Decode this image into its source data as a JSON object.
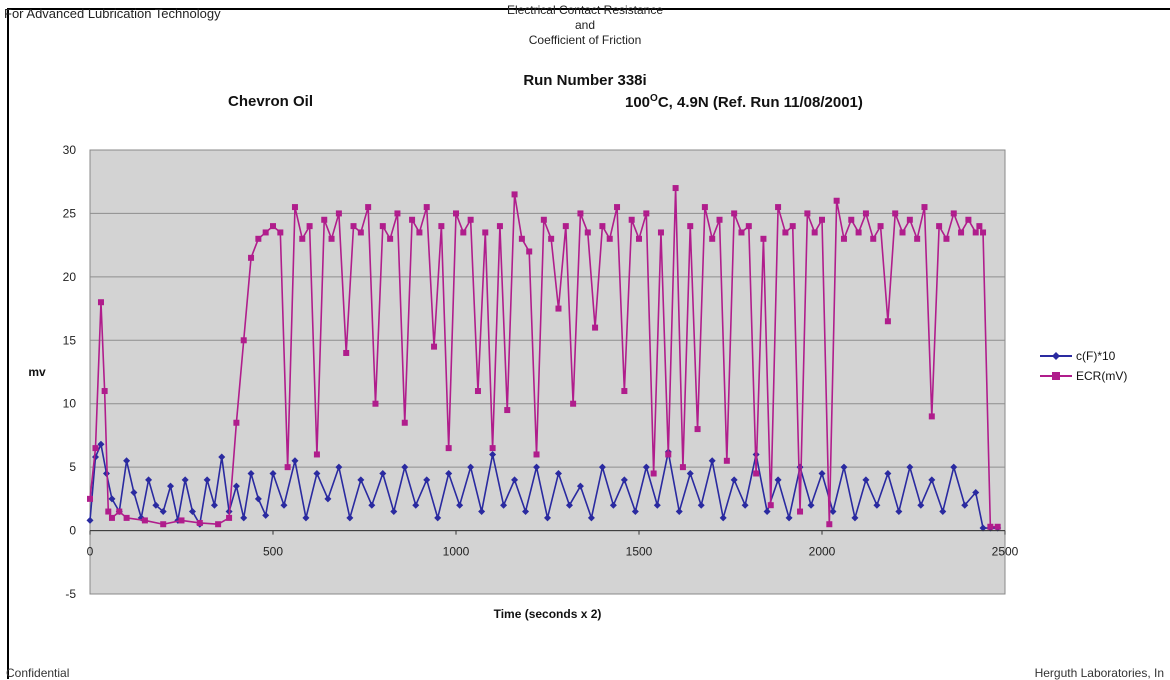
{
  "header": {
    "left_text": "For Advanced Lubrication Technology",
    "center_line1": "Electrical Contact Resistance",
    "center_line2": "and",
    "center_line3": "Coefficient of Friction"
  },
  "footer": {
    "left_text": "Confidential",
    "right_text": "Herguth Laboratories, In"
  },
  "chart_data": {
    "type": "line",
    "title": "Run Number 338i",
    "subtitle_left": "Chevron Oil",
    "subtitle_right_prefix": "100",
    "subtitle_right_degree": "O",
    "subtitle_right_suffix": "C, 4.9N (Ref. Run 11/08/2001)",
    "xlabel": "Time (seconds x 2)",
    "ylabel": "mv",
    "xlim": [
      0,
      2500
    ],
    "ylim": [
      -5,
      30
    ],
    "x_ticks": [
      "0",
      "500",
      "1000",
      "1500",
      "2000",
      "2500"
    ],
    "y_ticks": [
      "30",
      "25",
      "20",
      "15",
      "10",
      "5",
      "0",
      "-5"
    ],
    "grid": true,
    "plot_background": "#d3d3d3",
    "legend_position": "right",
    "series": [
      {
        "name": "c(F)*10",
        "color": "#2a2aa0",
        "marker": "diamond",
        "x": [
          0,
          15,
          30,
          45,
          60,
          80,
          100,
          120,
          140,
          160,
          180,
          200,
          220,
          240,
          260,
          280,
          300,
          320,
          340,
          360,
          380,
          400,
          420,
          440,
          460,
          480,
          500,
          530,
          560,
          590,
          620,
          650,
          680,
          710,
          740,
          770,
          800,
          830,
          860,
          890,
          920,
          950,
          980,
          1010,
          1040,
          1070,
          1100,
          1130,
          1160,
          1190,
          1220,
          1250,
          1280,
          1310,
          1340,
          1370,
          1400,
          1430,
          1460,
          1490,
          1520,
          1550,
          1580,
          1610,
          1640,
          1670,
          1700,
          1730,
          1760,
          1790,
          1820,
          1850,
          1880,
          1910,
          1940,
          1970,
          2000,
          2030,
          2060,
          2090,
          2120,
          2150,
          2180,
          2210,
          2240,
          2270,
          2300,
          2330,
          2360,
          2390,
          2420,
          2440,
          2460,
          2480
        ],
        "y": [
          0.8,
          5.8,
          6.8,
          4.5,
          2.5,
          1.5,
          5.5,
          3.0,
          1.0,
          4.0,
          2.0,
          1.5,
          3.5,
          0.8,
          4.0,
          1.5,
          0.5,
          4.0,
          2.0,
          5.8,
          1.5,
          3.5,
          1.0,
          4.5,
          2.5,
          1.2,
          4.5,
          2.0,
          5.5,
          1.0,
          4.5,
          2.5,
          5.0,
          1.0,
          4.0,
          2.0,
          4.5,
          1.5,
          5.0,
          2.0,
          4.0,
          1.0,
          4.5,
          2.0,
          5.0,
          1.5,
          6.0,
          2.0,
          4.0,
          1.5,
          5.0,
          1.0,
          4.5,
          2.0,
          3.5,
          1.0,
          5.0,
          2.0,
          4.0,
          1.5,
          5.0,
          2.0,
          6.2,
          1.5,
          4.5,
          2.0,
          5.5,
          1.0,
          4.0,
          2.0,
          6.0,
          1.5,
          4.0,
          1.0,
          5.0,
          2.0,
          4.5,
          1.5,
          5.0,
          1.0,
          4.0,
          2.0,
          4.5,
          1.5,
          5.0,
          2.0,
          4.0,
          1.5,
          5.0,
          2.0,
          3.0,
          0.2,
          0.2,
          0.2
        ]
      },
      {
        "name": "ECR(mV)",
        "color": "#b01d8c",
        "marker": "square",
        "x": [
          0,
          15,
          30,
          40,
          50,
          60,
          80,
          100,
          150,
          200,
          250,
          300,
          350,
          380,
          400,
          420,
          440,
          460,
          480,
          500,
          520,
          540,
          560,
          580,
          600,
          620,
          640,
          660,
          680,
          700,
          720,
          740,
          760,
          780,
          800,
          820,
          840,
          860,
          880,
          900,
          920,
          940,
          960,
          980,
          1000,
          1020,
          1040,
          1060,
          1080,
          1100,
          1120,
          1140,
          1160,
          1180,
          1200,
          1220,
          1240,
          1260,
          1280,
          1300,
          1320,
          1340,
          1360,
          1380,
          1400,
          1420,
          1440,
          1460,
          1480,
          1500,
          1520,
          1540,
          1560,
          1580,
          1600,
          1620,
          1640,
          1660,
          1680,
          1700,
          1720,
          1740,
          1760,
          1780,
          1800,
          1820,
          1840,
          1860,
          1880,
          1900,
          1920,
          1940,
          1960,
          1980,
          2000,
          2020,
          2040,
          2060,
          2080,
          2100,
          2120,
          2140,
          2160,
          2180,
          2200,
          2220,
          2240,
          2260,
          2280,
          2300,
          2320,
          2340,
          2360,
          2380,
          2400,
          2420,
          2430,
          2440,
          2460,
          2480
        ],
        "y": [
          2.5,
          6.5,
          18.0,
          11.0,
          1.5,
          1.0,
          1.5,
          1.0,
          0.8,
          0.5,
          0.8,
          0.6,
          0.5,
          1.0,
          8.5,
          15.0,
          21.5,
          23.0,
          23.5,
          24.0,
          23.5,
          5.0,
          25.5,
          23.0,
          24.0,
          6.0,
          24.5,
          23.0,
          25.0,
          14.0,
          24.0,
          23.5,
          25.5,
          10.0,
          24.0,
          23.0,
          25.0,
          8.5,
          24.5,
          23.5,
          25.5,
          14.5,
          24.0,
          6.5,
          25.0,
          23.5,
          24.5,
          11.0,
          23.5,
          6.5,
          24.0,
          9.5,
          26.5,
          23.0,
          22.0,
          6.0,
          24.5,
          23.0,
          17.5,
          24.0,
          10.0,
          25.0,
          23.5,
          16.0,
          24.0,
          23.0,
          25.5,
          11.0,
          24.5,
          23.0,
          25.0,
          4.5,
          23.5,
          6.0,
          27.0,
          5.0,
          24.0,
          8.0,
          25.5,
          23.0,
          24.5,
          5.5,
          25.0,
          23.5,
          24.0,
          4.5,
          23.0,
          2.0,
          25.5,
          23.5,
          24.0,
          1.5,
          25.0,
          23.5,
          24.5,
          0.5,
          26.0,
          23.0,
          24.5,
          23.5,
          25.0,
          23.0,
          24.0,
          16.5,
          25.0,
          23.5,
          24.5,
          23.0,
          25.5,
          9.0,
          24.0,
          23.0,
          25.0,
          23.5,
          24.5,
          23.5,
          24.0,
          23.5,
          0.3,
          0.3
        ]
      }
    ]
  }
}
